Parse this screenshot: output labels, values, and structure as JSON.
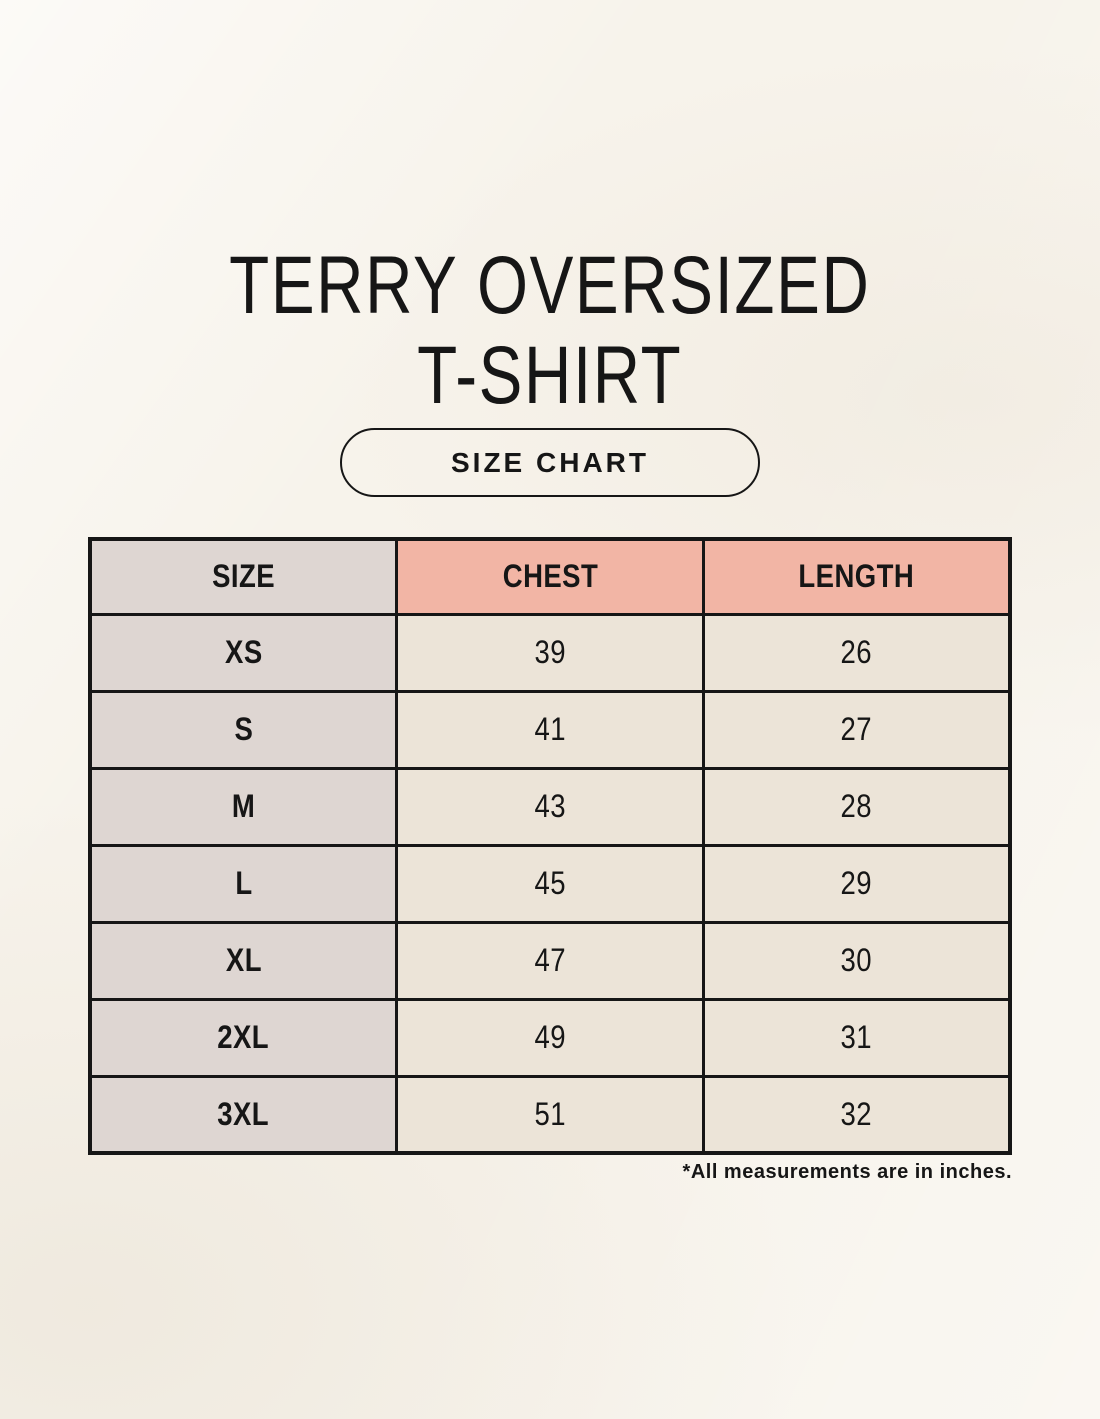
{
  "page": {
    "title_line1": "TERRY OVERSIZED",
    "title_line2": "T-SHIRT",
    "badge_label": "SIZE CHART",
    "footnote": "*All measurements are in inches."
  },
  "table": {
    "headers": [
      "SIZE",
      "CHEST",
      "LENGTH"
    ],
    "rows": [
      {
        "size": "XS",
        "chest": "39",
        "length": "26"
      },
      {
        "size": "S",
        "chest": "41",
        "length": "27"
      },
      {
        "size": "M",
        "chest": "43",
        "length": "28"
      },
      {
        "size": "L",
        "chest": "45",
        "length": "29"
      },
      {
        "size": "XL",
        "chest": "47",
        "length": "30"
      },
      {
        "size": "2XL",
        "chest": "49",
        "length": "31"
      },
      {
        "size": "3XL",
        "chest": "51",
        "length": "32"
      }
    ]
  },
  "colors": {
    "background": "#f7f3eb",
    "size_column_bg": "#ded6d2",
    "header_accent_bg": "#f2b5a5",
    "cell_bg": "#ece4d8",
    "border": "#161616",
    "text": "#161616"
  }
}
